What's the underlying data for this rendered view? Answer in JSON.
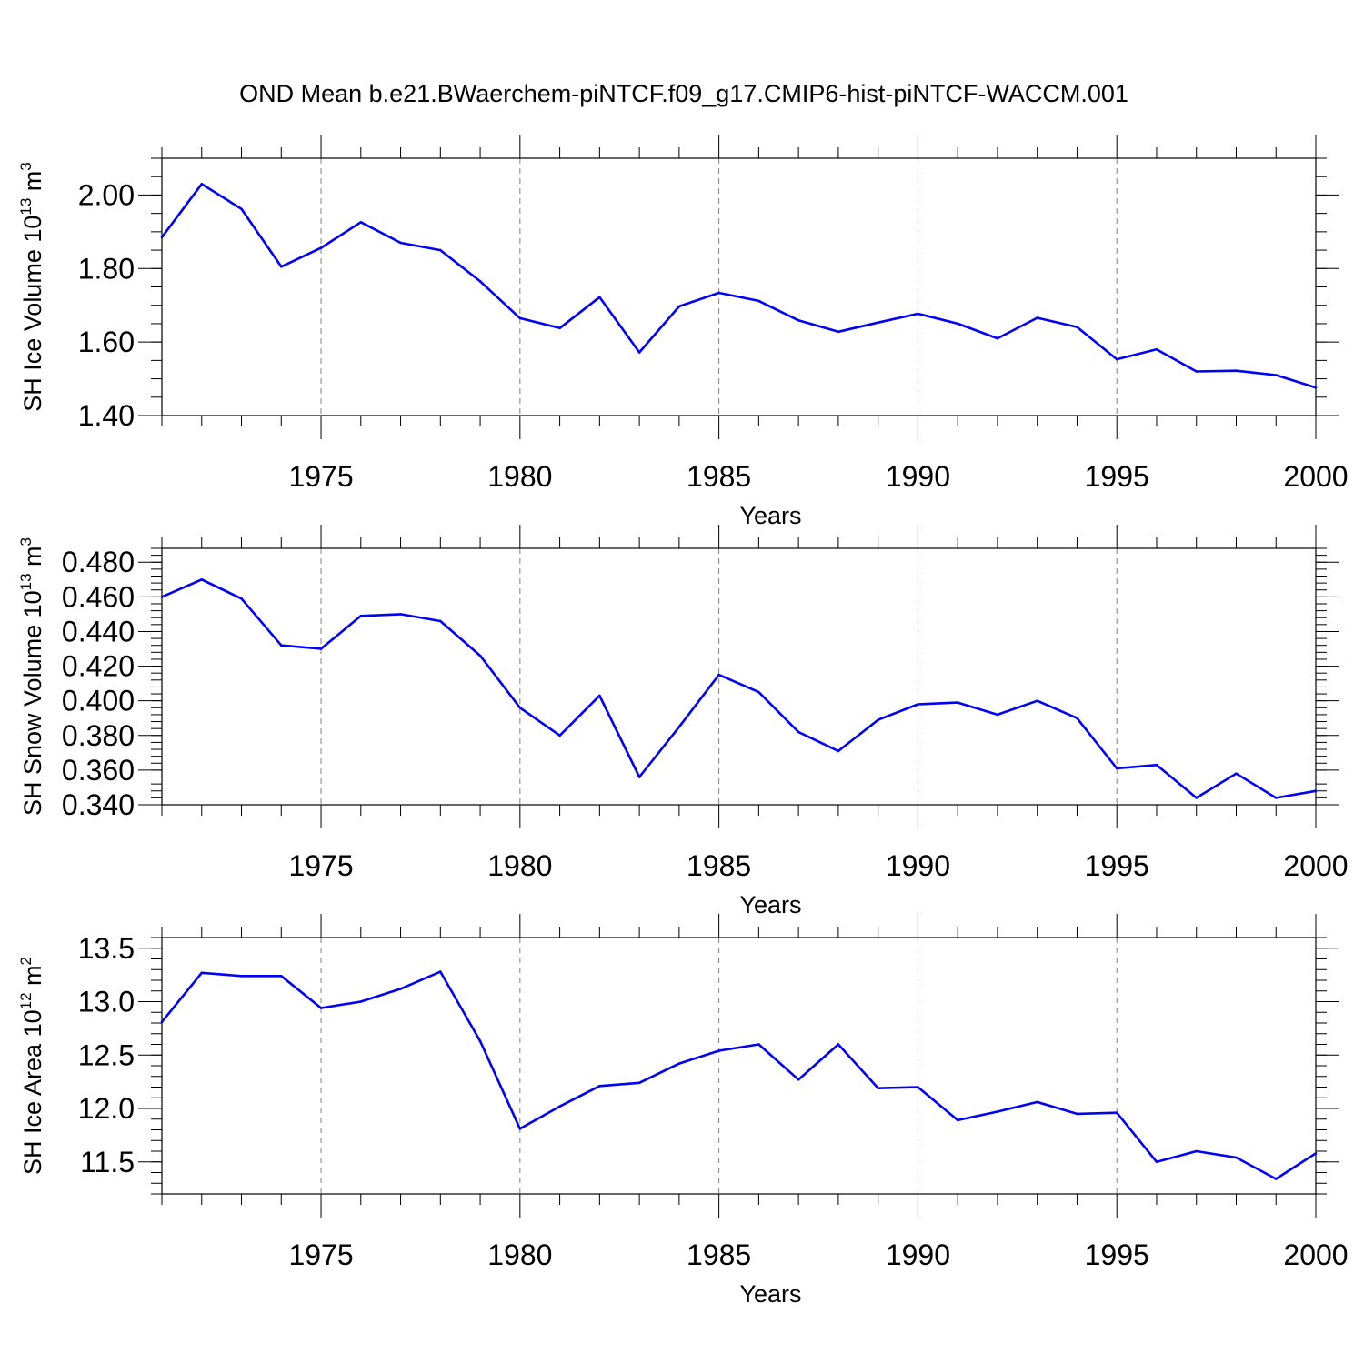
{
  "figure_title": "OND Mean b.e21.BWaerchem-piNTCF.f09_g17.CMIP6-hist-piNTCF-WACCM.001",
  "line_color": "#0000ff",
  "gridline_color": "#808080",
  "chart_data": [
    {
      "type": "line",
      "title": "OND Mean b.e21.BWaerchem-piNTCF.f09_g17.CMIP6-hist-piNTCF-WACCM.001",
      "xlabel": "Years",
      "ylabel": {
        "text": "SH Ice Volume 10",
        "exp1": "13",
        "unit": " m",
        "exp2": "3"
      },
      "xlim": [
        1971,
        2000
      ],
      "ylim": [
        1.4,
        2.1
      ],
      "xticks": [
        1975,
        1980,
        1985,
        1990,
        1995,
        2000
      ],
      "yticks": [
        1.4,
        1.6,
        1.8,
        2.0
      ],
      "ytick_labels": [
        "1.40",
        "1.60",
        "1.80",
        "2.00"
      ],
      "yminor": 0.05,
      "x": [
        1971,
        1972,
        1973,
        1974,
        1975,
        1976,
        1977,
        1978,
        1979,
        1980,
        1981,
        1982,
        1983,
        1984,
        1985,
        1986,
        1987,
        1988,
        1989,
        1990,
        1991,
        1992,
        1993,
        1994,
        1995,
        1996,
        1997,
        1998,
        1999,
        2000
      ],
      "y": [
        1.885,
        2.03,
        1.962,
        1.805,
        1.856,
        1.926,
        1.87,
        1.85,
        1.765,
        1.665,
        1.638,
        1.722,
        1.572,
        1.697,
        1.734,
        1.712,
        1.659,
        1.628,
        1.653,
        1.677,
        1.65,
        1.61,
        1.666,
        1.641,
        1.553,
        1.58,
        1.52,
        1.522,
        1.51,
        1.476
      ]
    },
    {
      "type": "line",
      "title": "",
      "xlabel": "Years",
      "ylabel": {
        "text": "SH Snow Volume 10",
        "exp1": "13",
        "unit": " m",
        "exp2": "3"
      },
      "xlim": [
        1971,
        2000
      ],
      "ylim": [
        0.34,
        0.488
      ],
      "xticks": [
        1975,
        1980,
        1985,
        1990,
        1995,
        2000
      ],
      "yticks": [
        0.34,
        0.36,
        0.38,
        0.4,
        0.42,
        0.44,
        0.46,
        0.48
      ],
      "ytick_labels": [
        "0.340",
        "0.360",
        "0.380",
        "0.400",
        "0.420",
        "0.440",
        "0.460",
        "0.480"
      ],
      "yminor": 0.004,
      "x": [
        1971,
        1972,
        1973,
        1974,
        1975,
        1976,
        1977,
        1978,
        1979,
        1980,
        1981,
        1982,
        1983,
        1984,
        1985,
        1986,
        1987,
        1988,
        1989,
        1990,
        1991,
        1992,
        1993,
        1994,
        1995,
        1996,
        1997,
        1998,
        1999,
        2000
      ],
      "y": [
        0.46,
        0.47,
        0.459,
        0.432,
        0.43,
        0.449,
        0.45,
        0.446,
        0.426,
        0.396,
        0.38,
        0.403,
        0.356,
        0.385,
        0.415,
        0.405,
        0.382,
        0.371,
        0.389,
        0.398,
        0.399,
        0.392,
        0.4,
        0.39,
        0.361,
        0.363,
        0.344,
        0.358,
        0.344,
        0.348
      ]
    },
    {
      "type": "line",
      "title": "",
      "xlabel": "Years",
      "ylabel": {
        "text": "SH Ice Area 10",
        "exp1": "12",
        "unit": " m",
        "exp2": "2"
      },
      "xlim": [
        1971,
        2000
      ],
      "ylim": [
        11.2,
        13.6
      ],
      "xticks": [
        1975,
        1980,
        1985,
        1990,
        1995,
        2000
      ],
      "yticks": [
        11.5,
        12.0,
        12.5,
        13.0,
        13.5
      ],
      "ytick_labels": [
        "11.5",
        "12.0",
        "12.5",
        "13.0",
        "13.5"
      ],
      "yminor": 0.1,
      "x": [
        1971,
        1972,
        1973,
        1974,
        1975,
        1976,
        1977,
        1978,
        1979,
        1980,
        1981,
        1982,
        1983,
        1984,
        1985,
        1986,
        1987,
        1988,
        1989,
        1990,
        1991,
        1992,
        1993,
        1994,
        1995,
        1996,
        1997,
        1998,
        1999,
        2000
      ],
      "y": [
        12.81,
        13.27,
        13.24,
        13.24,
        12.94,
        13.0,
        13.12,
        13.28,
        12.63,
        11.81,
        12.02,
        12.21,
        12.24,
        12.42,
        12.54,
        12.6,
        12.27,
        12.6,
        12.19,
        12.2,
        11.89,
        11.97,
        12.06,
        11.95,
        11.96,
        11.5,
        11.6,
        11.54,
        11.34,
        11.58
      ]
    }
  ]
}
